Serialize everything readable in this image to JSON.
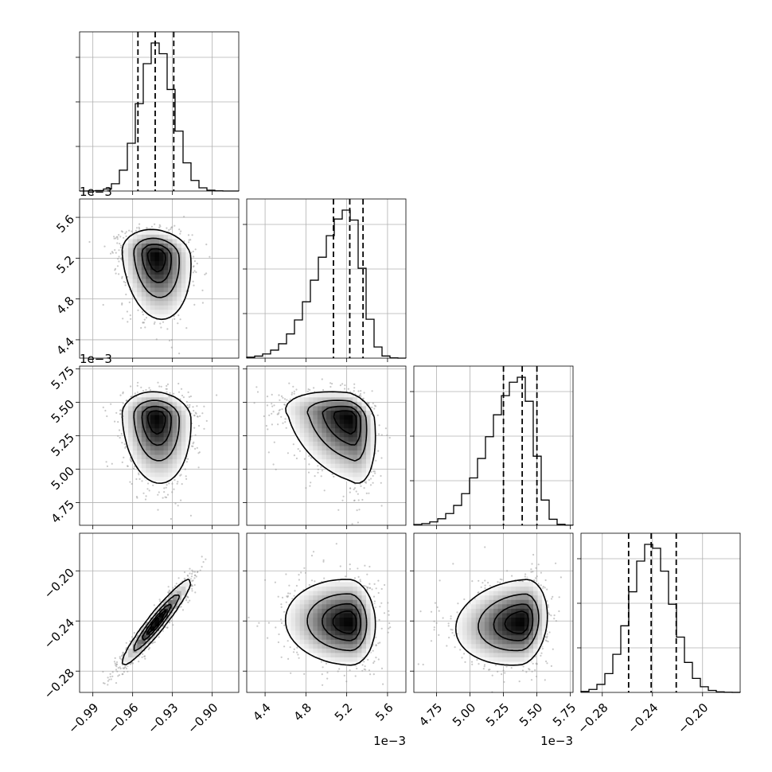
{
  "chart_data": {
    "type": "corner",
    "parameters": [
      {
        "ticks": [
          -0.99,
          -0.96,
          -0.93,
          -0.9
        ],
        "tick_labels": [
          "−0.99",
          "−0.96",
          "−0.93",
          "−0.90"
        ],
        "range": [
          -1.0,
          -0.88
        ],
        "offset": "",
        "mean": -0.942,
        "sd": 0.0125,
        "skew": 0,
        "quantiles": [
          -0.956,
          -0.943,
          -0.929
        ]
      },
      {
        "ticks": [
          4.4,
          4.8,
          5.2,
          5.6
        ],
        "tick_labels": [
          "4.4",
          "4.8",
          "5.2",
          "5.6"
        ],
        "range": [
          4.22,
          5.78
        ],
        "offset": "1e−3",
        "mean": 5.23,
        "sd": 0.16,
        "skew": -0.9,
        "quantiles": [
          5.07,
          5.23,
          5.36
        ]
      },
      {
        "ticks": [
          4.75,
          5.0,
          5.25,
          5.5,
          5.75
        ],
        "tick_labels": [
          "4.75",
          "5.00",
          "5.25",
          "5.50",
          "5.75"
        ],
        "range": [
          4.58,
          5.77
        ],
        "offset": "1e−3",
        "mean": 5.39,
        "sd": 0.12,
        "skew": -1.0,
        "quantiles": [
          5.25,
          5.39,
          5.5
        ]
      },
      {
        "ticks": [
          -0.28,
          -0.24,
          -0.2
        ],
        "tick_labels": [
          "−0.28",
          "−0.24",
          "−0.20"
        ],
        "range": [
          -0.297,
          -0.17
        ],
        "offset": "",
        "mean": -0.241,
        "sd": 0.0165,
        "skew": 0,
        "quantiles": [
          -0.259,
          -0.241,
          -0.221
        ]
      }
    ],
    "correlations": [
      [
        1,
        -0.15,
        -0.1,
        0.95
      ],
      [
        -0.15,
        1,
        -0.3,
        -0.05
      ],
      [
        -0.1,
        -0.3,
        1,
        0.15
      ],
      [
        0.95,
        -0.05,
        0.15,
        1
      ]
    ],
    "contour_levels": [
      0.118,
      0.393,
      0.675,
      0.865
    ],
    "grid": true
  }
}
